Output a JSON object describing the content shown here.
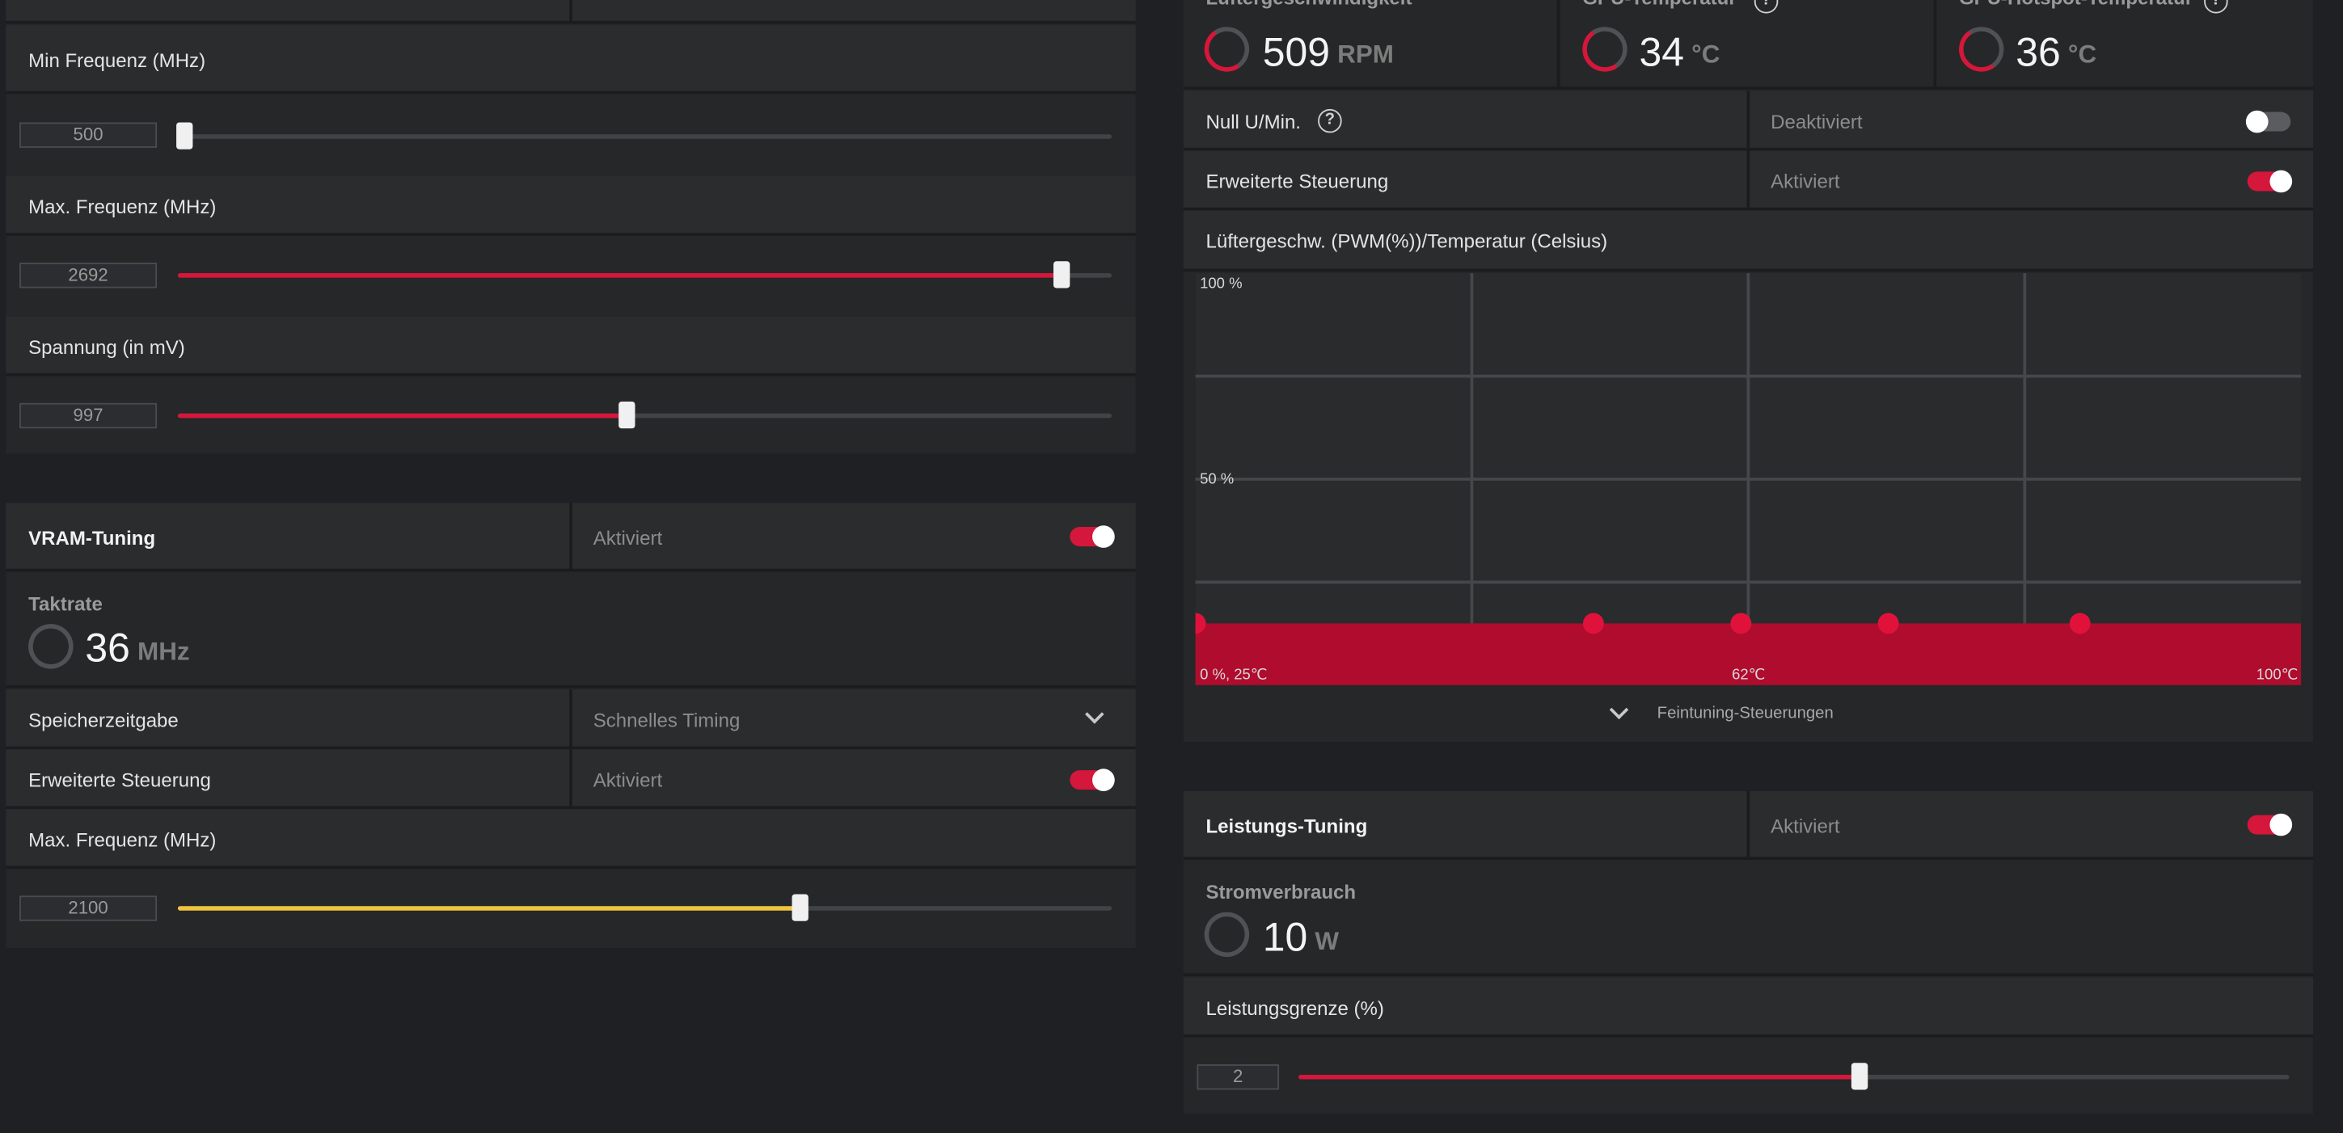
{
  "gpu_tuning": {
    "min_freq": {
      "label": "Min Frequenz (MHz)",
      "value": "500",
      "fraction": 0.0
    },
    "max_freq": {
      "label": "Max. Frequenz (MHz)",
      "value": "2692",
      "fraction": 0.945
    },
    "voltage": {
      "label": "Spannung (in mV)",
      "value": "997",
      "fraction": 0.48
    }
  },
  "vram_tuning": {
    "title": "VRAM-Tuning",
    "status": "Aktiviert",
    "clock": {
      "label": "Taktrate",
      "value": "36",
      "unit": "MHz"
    },
    "memory_timing": {
      "label": "Speicherzeitgabe",
      "value": "Schnelles Timing"
    },
    "advanced": {
      "label": "Erweiterte Steuerung",
      "status": "Aktiviert"
    },
    "max_freq": {
      "label": "Max. Frequenz (MHz)",
      "value": "2100",
      "fraction": 0.665
    }
  },
  "fan_tuning": {
    "gauges": [
      {
        "label": "Lüftergeschwindigkeit",
        "value": "509",
        "unit": "RPM"
      },
      {
        "label": "GPU-Temperatur",
        "value": "34",
        "unit": "°C"
      },
      {
        "label": "GPU-Hotspot-Temperatur",
        "value": "36",
        "unit": "°C"
      }
    ],
    "zero_rpm": {
      "label": "Null U/Min.",
      "status": "Deaktiviert"
    },
    "advanced": {
      "label": "Erweiterte Steuerung",
      "status": "Aktiviert"
    },
    "curve_title": "Lüftergeschw. (PWM(%))/Temperatur (Celsius)",
    "y_top": "100 %",
    "y_mid": "50 %",
    "x_left": "0 %, 25℃",
    "x_mid": "62℃",
    "x_right": "100℃",
    "fine_tuning": "Feintuning-Steuerungen"
  },
  "power_tuning": {
    "title": "Leistungs-Tuning",
    "status": "Aktiviert",
    "consumption": {
      "label": "Stromverbrauch",
      "value": "10",
      "unit": "W"
    },
    "limit": {
      "label": "Leistungsgrenze (%)",
      "value": "2",
      "fraction": 0.565
    }
  },
  "chart_data": {
    "type": "area",
    "x": [
      25,
      52,
      62,
      72,
      85
    ],
    "values": [
      15,
      15,
      15,
      15,
      15
    ],
    "xlim": [
      25,
      100
    ],
    "ylim": [
      0,
      100
    ],
    "grid": true
  },
  "colors": {
    "accent": "#d4173a",
    "vram_slider": "#f0c43c",
    "background": "#1e2024",
    "panel": "#262729"
  },
  "icons": {
    "help": "?"
  }
}
